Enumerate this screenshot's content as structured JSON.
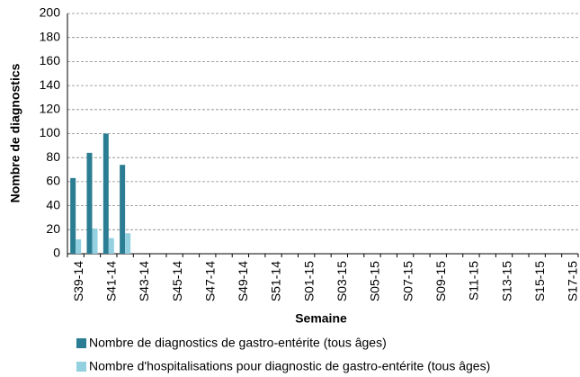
{
  "chart_data": {
    "type": "bar",
    "y_label": "Nombre de diagnostics",
    "x_label": "Semaine",
    "categories": [
      "S39-14",
      null,
      "S41-14",
      null,
      "S43-14",
      null,
      "S45-14",
      null,
      "S47-14",
      null,
      "S49-14",
      null,
      "S51-14",
      null,
      "S01-15",
      null,
      "S03-15",
      null,
      "S05-15",
      null,
      "S07-15",
      null,
      "S09-15",
      null,
      "S11-15",
      null,
      "S13-15",
      null,
      "S15-15",
      null,
      "S17-15"
    ],
    "series": [
      {
        "name": "Nombre de diagnostics de gastro-entérite (tous âges)",
        "color": "#2b7d93",
        "values": [
          63,
          84,
          100,
          74,
          null,
          null,
          null,
          null,
          null,
          null,
          null,
          null,
          null,
          null,
          null,
          null,
          null,
          null,
          null,
          null,
          null,
          null,
          null,
          null,
          null,
          null,
          null,
          null,
          null,
          null,
          null
        ]
      },
      {
        "name": "Nombre d'hospitalisations pour diagnostic de gastro-entérite (tous âges)",
        "color": "#93d0e0",
        "values": [
          12,
          21,
          13,
          17,
          null,
          null,
          null,
          null,
          null,
          null,
          null,
          null,
          null,
          null,
          null,
          null,
          null,
          null,
          null,
          null,
          null,
          null,
          null,
          null,
          null,
          null,
          null,
          null,
          null,
          null,
          null
        ]
      }
    ],
    "ylim": [
      0,
      200
    ],
    "yticks": [
      0,
      20,
      40,
      60,
      80,
      100,
      120,
      140,
      160,
      180,
      200
    ],
    "grid": true,
    "legend": "bottom"
  }
}
